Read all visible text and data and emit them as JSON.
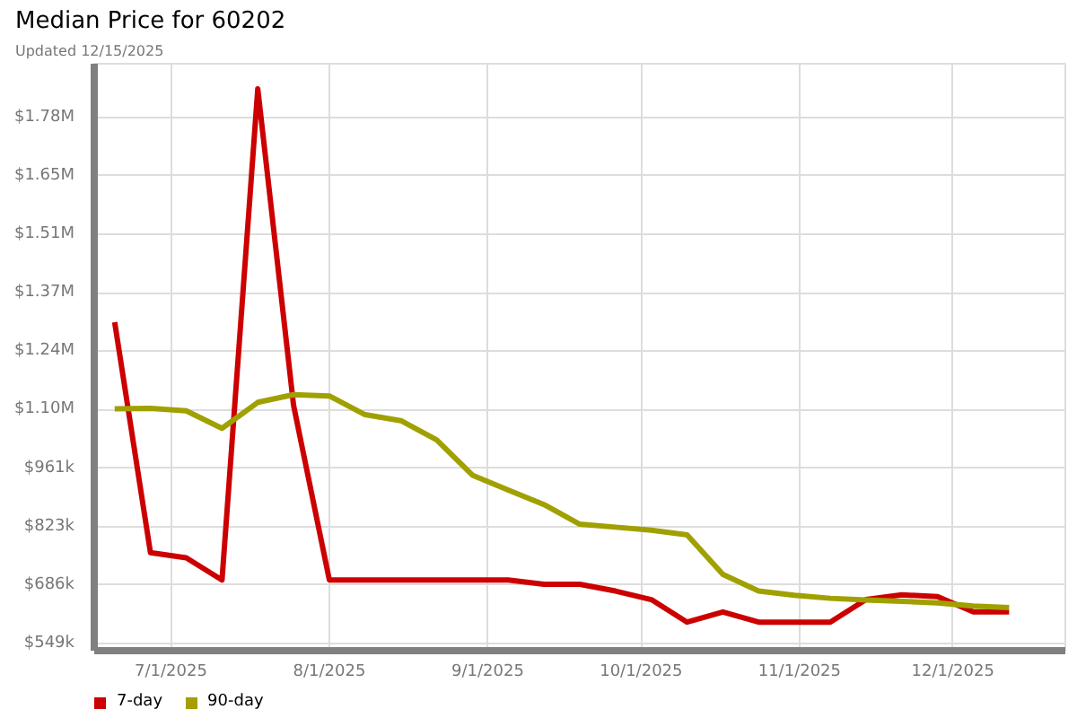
{
  "chart_data": {
    "type": "line",
    "title": "Median Price for 60202",
    "subtitle": "Updated 12/15/2025",
    "x": [
      "2025-06-20",
      "2025-06-27",
      "2025-07-04",
      "2025-07-11",
      "2025-07-18",
      "2025-07-25",
      "2025-08-01",
      "2025-08-08",
      "2025-08-15",
      "2025-08-22",
      "2025-08-29",
      "2025-09-05",
      "2025-09-12",
      "2025-09-19",
      "2025-09-26",
      "2025-10-03",
      "2025-10-10",
      "2025-10-17",
      "2025-10-24",
      "2025-10-31",
      "2025-11-07",
      "2025-11-14",
      "2025-11-21",
      "2025-11-28",
      "2025-12-05",
      "2025-12-12"
    ],
    "series": [
      {
        "name": "7-day",
        "color": "#cc0000",
        "values": [
          1303000,
          762000,
          750000,
          698000,
          1851000,
          1108000,
          698000,
          698000,
          698000,
          698000,
          698000,
          698000,
          688000,
          688000,
          672000,
          652000,
          599000,
          623000,
          599000,
          599000,
          599000,
          652000,
          663000,
          659000,
          623000,
          623000
        ]
      },
      {
        "name": "90-day",
        "color": "#a0a000",
        "values": [
          1100000,
          1101000,
          1095000,
          1054000,
          1115000,
          1133000,
          1130000,
          1086000,
          1072000,
          1027000,
          944000,
          909000,
          875000,
          829000,
          822000,
          815000,
          804000,
          711000,
          672000,
          662000,
          655000,
          651000,
          648000,
          644000,
          637000,
          633000
        ]
      }
    ],
    "xlim": [
      "2025-06-16",
      "2025-12-23"
    ],
    "xticks": [
      {
        "value": "2025-07-01",
        "label": "7/1/2025"
      },
      {
        "value": "2025-08-01",
        "label": "8/1/2025"
      },
      {
        "value": "2025-09-01",
        "label": "9/1/2025"
      },
      {
        "value": "2025-10-01",
        "label": "10/1/2025"
      },
      {
        "value": "2025-11-01",
        "label": "11/1/2025"
      },
      {
        "value": "2025-12-01",
        "label": "12/1/2025"
      }
    ],
    "ylim": [
      532000,
      1910000
    ],
    "yticks": [
      {
        "value": 549000,
        "label": "$549k"
      },
      {
        "value": 686250,
        "label": "$686k"
      },
      {
        "value": 823500,
        "label": "$823k"
      },
      {
        "value": 960750,
        "label": "$961k"
      },
      {
        "value": 1098000,
        "label": "$1.10M"
      },
      {
        "value": 1235250,
        "label": "$1.24M"
      },
      {
        "value": 1372500,
        "label": "$1.37M"
      },
      {
        "value": 1509750,
        "label": "$1.51M"
      },
      {
        "value": 1647000,
        "label": "$1.65M"
      },
      {
        "value": 1784250,
        "label": "$1.78M"
      }
    ],
    "grid": true,
    "legend": "bottom left",
    "line_style": "solid"
  }
}
